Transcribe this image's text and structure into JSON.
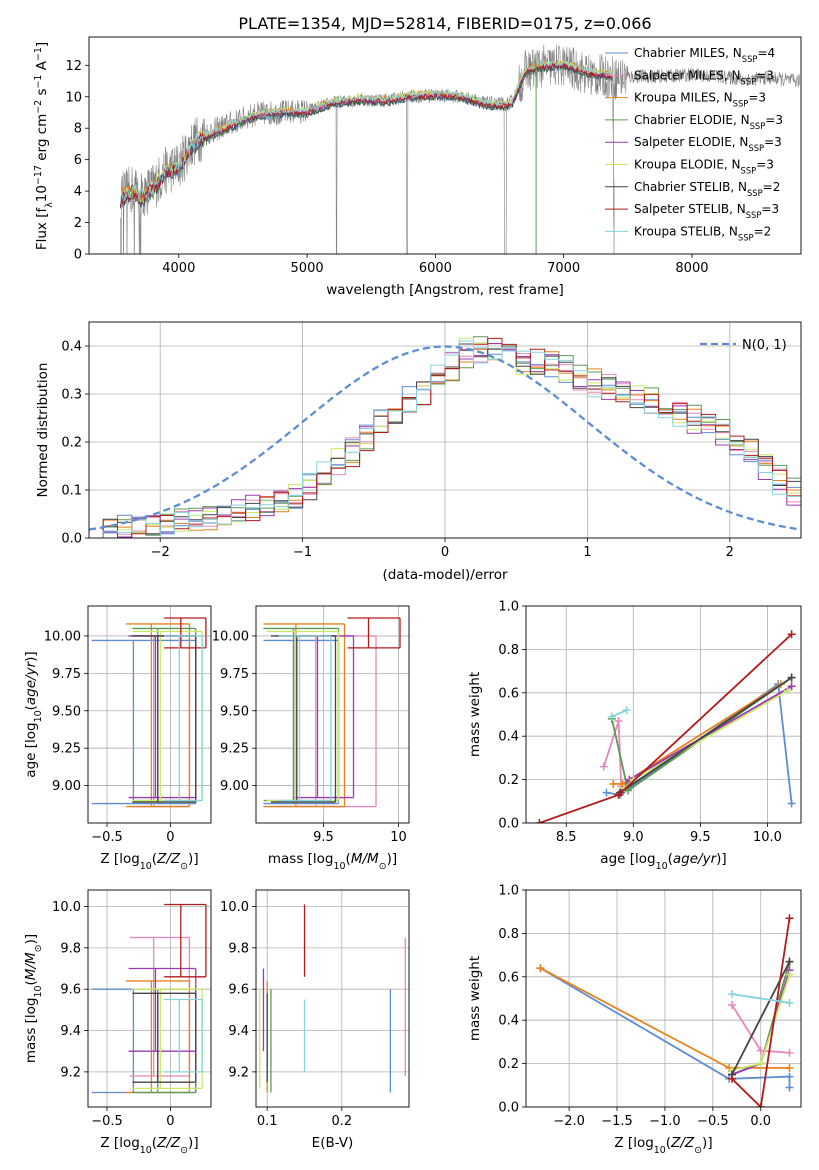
{
  "title": "PLATE=1354, MJD=52814, FIBERID=0175, z=0.066",
  "colors": {
    "chabrier_miles": "#5f8dd3",
    "salpeter_miles": "#e887b8",
    "kroupa_miles": "#e8821f",
    "chabrier_elodie": "#5b9a54",
    "salpeter_elodie": "#9b3bb4",
    "kroupa_elodie": "#c9e86a",
    "chabrier_stelib": "#444444",
    "salpeter_stelib": "#b31b1b",
    "kroupa_stelib": "#86d3dc",
    "data": "#808080",
    "gauss": "#5f8dd3",
    "grid": "#b0b0b0"
  },
  "legend": [
    {
      "key": "chabrier_miles",
      "text": "Chabrier MILES, N",
      "sub": "SSP",
      "suffix": "=4"
    },
    {
      "key": "salpeter_miles",
      "text": "Salpeter MILES, N",
      "sub": "SSP",
      "suffix": "=3"
    },
    {
      "key": "kroupa_miles",
      "text": "Kroupa MILES, N",
      "sub": "SSP",
      "suffix": "=3"
    },
    {
      "key": "chabrier_elodie",
      "text": "Chabrier ELODIE, N",
      "sub": "SSP",
      "suffix": "=3"
    },
    {
      "key": "salpeter_elodie",
      "text": "Salpeter ELODIE, N",
      "sub": "SSP",
      "suffix": "=3"
    },
    {
      "key": "kroupa_elodie",
      "text": "Kroupa ELODIE, N",
      "sub": "SSP",
      "suffix": "=3"
    },
    {
      "key": "chabrier_stelib",
      "text": "Chabrier STELIB, N",
      "sub": "SSP",
      "suffix": "=2"
    },
    {
      "key": "salpeter_stelib",
      "text": "Salpeter STELIB, N",
      "sub": "SSP",
      "suffix": "=3"
    },
    {
      "key": "kroupa_stelib",
      "text": "Kroupa STELIB, N",
      "sub": "SSP",
      "suffix": "=2"
    }
  ],
  "chart_data": [
    {
      "type": "line",
      "name": "spectrum",
      "xlabel": "wavelength [Angstrom, rest frame]",
      "ylabel": "Flux [f_λ 10^-17 erg cm^-2 s^-1 A^-1]",
      "xlim": [
        3300,
        8850
      ],
      "ylim": [
        0,
        13.8
      ],
      "xticks": [
        4000,
        5000,
        6000,
        7000,
        8000
      ],
      "yticks": [
        0,
        2,
        4,
        6,
        8,
        10,
        12
      ],
      "grid": false,
      "legend_position": "right",
      "data_profile": {
        "x": [
          3550,
          3650,
          3700,
          3800,
          3900,
          4000,
          4100,
          4200,
          4400,
          4600,
          4800,
          5000,
          5200,
          5400,
          5600,
          5800,
          6000,
          6200,
          6400,
          6560,
          6600,
          6700,
          6800,
          7000,
          7200,
          7400,
          7600,
          7800,
          8000,
          8200,
          8400,
          8600,
          8800
        ],
        "y": [
          3.6,
          4.2,
          3.7,
          4.3,
          5.3,
          5.6,
          7.0,
          7.6,
          8.3,
          8.9,
          9.0,
          9.1,
          9.6,
          9.8,
          9.8,
          10.0,
          10.1,
          10.0,
          9.6,
          9.5,
          9.7,
          11.6,
          11.9,
          12.0,
          11.4,
          11.2,
          11.3,
          11.3,
          11.4,
          11.3,
          11.1,
          11.2,
          11.0
        ]
      },
      "model_profile": {
        "x": [
          3550,
          3650,
          3700,
          3800,
          3900,
          4000,
          4100,
          4200,
          4400,
          4600,
          4800,
          5000,
          5200,
          5400,
          5600,
          5800,
          6000,
          6200,
          6400,
          6560,
          6600,
          6700,
          6800,
          7000,
          7200,
          7400
        ],
        "y": [
          3.5,
          4.0,
          3.5,
          4.1,
          5.2,
          5.5,
          6.9,
          7.4,
          8.1,
          8.8,
          9.0,
          9.0,
          9.6,
          9.8,
          9.7,
          10.0,
          10.1,
          10.0,
          9.5,
          9.4,
          9.6,
          11.6,
          11.9,
          12.0,
          11.5,
          11.3
        ]
      }
    },
    {
      "type": "line",
      "name": "residual distribution",
      "xlabel": "(data-model)/error",
      "ylabel": "Normed distribution",
      "xlim": [
        -2.5,
        2.5
      ],
      "ylim": [
        0,
        0.45
      ],
      "xticks": [
        -2,
        -1,
        0,
        1,
        2
      ],
      "yticks": [
        0.0,
        0.1,
        0.2,
        0.3,
        0.4
      ],
      "grid": true,
      "legend_label": "N(0, 1)",
      "legend_position": "top-right",
      "hist_profile": {
        "x": [
          -2.5,
          -2.0,
          -1.5,
          -1.0,
          -0.5,
          0.0,
          0.2,
          0.5,
          0.8,
          1.0,
          1.5,
          2.0,
          2.5
        ],
        "y": [
          0.01,
          0.03,
          0.05,
          0.09,
          0.22,
          0.34,
          0.4,
          0.37,
          0.36,
          0.33,
          0.28,
          0.22,
          0.09
        ]
      }
    },
    {
      "type": "scatter",
      "name": "age vs Z",
      "xlabel": "Z [log10(Z/Z☉)]",
      "ylabel": "age [log10(age/yr)]",
      "xlim": [
        -0.65,
        0.32
      ],
      "ylim": [
        8.75,
        10.2
      ],
      "xticks": [
        -0.5,
        0.0
      ],
      "yticks": [
        9.0,
        9.25,
        9.5,
        9.75,
        10.0
      ],
      "grid": true
    },
    {
      "type": "scatter",
      "name": "age vs mass",
      "xlabel": "mass [log10(M/M☉)]",
      "ylabel": "",
      "xlim": [
        9.05,
        10.07
      ],
      "ylim": [
        8.75,
        10.2
      ],
      "xticks": [
        9.5,
        10.0
      ],
      "yticks": [
        9.0,
        9.25,
        9.5,
        9.75,
        10.0
      ],
      "grid": true
    },
    {
      "type": "line",
      "name": "mass weight vs age",
      "xlabel": "age [log10(age/yr)]",
      "ylabel": "mass weight",
      "xlim": [
        8.2,
        10.25
      ],
      "ylim": [
        0,
        1.0
      ],
      "xticks": [
        8.5,
        9.0,
        9.5,
        10.0
      ],
      "yticks": [
        0.0,
        0.2,
        0.4,
        0.6,
        0.8,
        1.0
      ],
      "grid": true,
      "series": [
        {
          "key": "chabrier_miles",
          "x": [
            8.8,
            8.9,
            10.08,
            10.18
          ],
          "y": [
            0.14,
            0.13,
            0.64,
            0.09
          ]
        },
        {
          "key": "salpeter_miles",
          "x": [
            8.78,
            8.89,
            8.91,
            10.18
          ],
          "y": [
            0.26,
            0.47,
            0.17,
            0.63
          ]
        },
        {
          "key": "kroupa_miles",
          "x": [
            8.85,
            8.92,
            10.1
          ],
          "y": [
            0.18,
            0.18,
            0.64
          ]
        },
        {
          "key": "chabrier_elodie",
          "x": [
            8.84,
            8.96,
            10.18
          ],
          "y": [
            0.48,
            0.15,
            0.67
          ]
        },
        {
          "key": "salpeter_elodie",
          "x": [
            8.91,
            8.97,
            10.18
          ],
          "y": [
            0.14,
            0.2,
            0.63
          ]
        },
        {
          "key": "kroupa_elodie",
          "x": [
            8.93,
            9.0,
            10.15
          ],
          "y": [
            0.16,
            0.2,
            0.61
          ]
        },
        {
          "key": "chabrier_stelib",
          "x": [
            8.9,
            10.18
          ],
          "y": [
            0.14,
            0.67
          ]
        },
        {
          "key": "salpeter_stelib",
          "x": [
            8.3,
            8.89,
            10.18
          ],
          "y": [
            0.0,
            0.13,
            0.87
          ]
        },
        {
          "key": "kroupa_stelib",
          "x": [
            8.84,
            8.95
          ],
          "y": [
            0.49,
            0.52
          ]
        }
      ]
    },
    {
      "type": "scatter",
      "name": "mass vs Z",
      "xlabel": "Z [log10(Z/Z☉)]",
      "ylabel": "mass [log10(M/M☉)]",
      "xlim": [
        -0.65,
        0.32
      ],
      "ylim": [
        9.03,
        10.08
      ],
      "xticks": [
        -0.5,
        0.0
      ],
      "yticks": [
        9.2,
        9.4,
        9.6,
        9.8,
        10.0
      ],
      "grid": true
    },
    {
      "type": "scatter",
      "name": "mass vs E(B-V)",
      "xlabel": "E(B-V)",
      "ylabel": "",
      "xlim": [
        0.085,
        0.29
      ],
      "ylim": [
        9.03,
        10.08
      ],
      "xticks": [
        0.1,
        0.2
      ],
      "yticks": [
        9.2,
        9.4,
        9.6,
        9.8,
        10.0
      ],
      "grid": true
    },
    {
      "type": "line",
      "name": "mass weight vs Z",
      "xlabel": "Z [log10(Z/Z☉)]",
      "ylabel": "mass weight",
      "xlim": [
        -2.45,
        0.42
      ],
      "ylim": [
        0,
        1.0
      ],
      "xticks": [
        -2.0,
        -1.5,
        -1.0,
        -0.5,
        0.0
      ],
      "yticks": [
        0.0,
        0.2,
        0.4,
        0.6,
        0.8,
        1.0
      ],
      "grid": true,
      "series": [
        {
          "key": "chabrier_miles",
          "x": [
            -2.3,
            -0.33,
            0.3,
            0.3
          ],
          "y": [
            0.64,
            0.13,
            0.14,
            0.09
          ]
        },
        {
          "key": "salpeter_miles",
          "x": [
            -0.3,
            0.0,
            0.3
          ],
          "y": [
            0.47,
            0.26,
            0.25
          ]
        },
        {
          "key": "kroupa_miles",
          "x": [
            -2.3,
            -0.33,
            0.3
          ],
          "y": [
            0.64,
            0.18,
            0.18
          ]
        },
        {
          "key": "chabrier_elodie",
          "x": [
            -0.3,
            0.0,
            0.3
          ],
          "y": [
            0.15,
            0.2,
            0.67
          ]
        },
        {
          "key": "salpeter_elodie",
          "x": [
            -0.3,
            0.0,
            0.3
          ],
          "y": [
            0.15,
            0.2,
            0.63
          ]
        },
        {
          "key": "kroupa_elodie",
          "x": [
            -0.3,
            0.0,
            0.3
          ],
          "y": [
            0.17,
            0.2,
            0.61
          ]
        },
        {
          "key": "chabrier_stelib",
          "x": [
            -0.3,
            0.3
          ],
          "y": [
            0.15,
            0.67
          ]
        },
        {
          "key": "salpeter_stelib",
          "x": [
            -0.3,
            0.0,
            0.3
          ],
          "y": [
            0.13,
            0.0,
            0.87
          ]
        },
        {
          "key": "kroupa_stelib",
          "x": [
            -0.3,
            0.3
          ],
          "y": [
            0.52,
            0.48
          ]
        }
      ]
    }
  ],
  "ssp_ranges": [
    {
      "key": "chabrier_miles",
      "z": [
        -0.62,
        0.2
      ],
      "age": [
        8.88,
        9.97
      ],
      "mass": [
        9.1,
        9.6
      ],
      "ebv": 0.265
    },
    {
      "key": "salpeter_miles",
      "z": [
        -0.32,
        0.15
      ],
      "age": [
        8.86,
        10.0
      ],
      "mass": [
        9.18,
        9.85
      ],
      "ebv": 0.285
    },
    {
      "key": "kroupa_miles",
      "z": [
        -0.35,
        0.15
      ],
      "age": [
        8.86,
        10.08
      ],
      "mass": [
        9.1,
        9.64
      ],
      "ebv": 0.1
    },
    {
      "key": "chabrier_elodie",
      "z": [
        -0.3,
        0.2
      ],
      "age": [
        8.9,
        10.05
      ],
      "mass": [
        9.1,
        9.6
      ],
      "ebv": 0.105
    },
    {
      "key": "salpeter_elodie",
      "z": [
        -0.33,
        0.2
      ],
      "age": [
        8.92,
        10.0
      ],
      "mass": [
        9.3,
        9.7
      ],
      "ebv": 0.095
    },
    {
      "key": "kroupa_elodie",
      "z": [
        -0.3,
        0.25
      ],
      "age": [
        8.9,
        10.03
      ],
      "mass": [
        9.12,
        9.6
      ],
      "ebv": 0.09
    },
    {
      "key": "chabrier_stelib",
      "z": [
        -0.3,
        0.2
      ],
      "age": [
        8.89,
        10.0
      ],
      "mass": [
        9.15,
        9.58
      ],
      "ebv": 0.1
    },
    {
      "key": "salpeter_stelib",
      "z": [
        -0.05,
        0.28
      ],
      "age": [
        9.92,
        10.12
      ],
      "mass": [
        9.66,
        10.01
      ],
      "ebv": 0.15
    },
    {
      "key": "kroupa_stelib",
      "z": [
        -0.05,
        0.25
      ],
      "age": [
        8.9,
        10.0
      ],
      "mass": [
        9.2,
        9.55
      ],
      "ebv": 0.15
    }
  ]
}
